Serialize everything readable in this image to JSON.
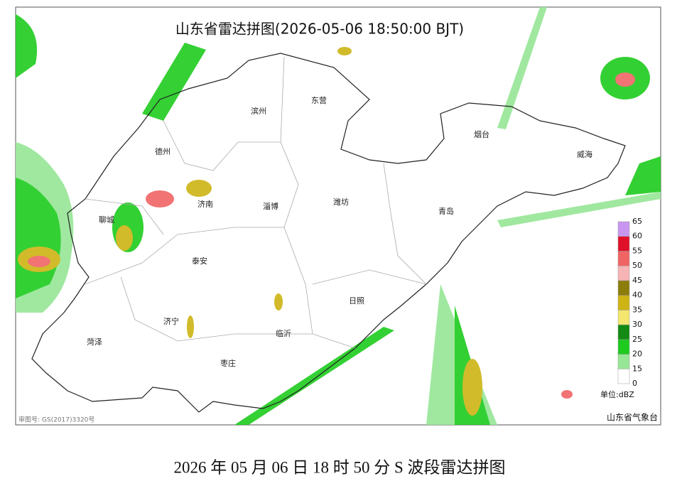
{
  "map": {
    "title": "山东省雷达拼图(2026-05-06 18:50:00 BJT)",
    "cities": [
      "滨州",
      "东营",
      "德州",
      "烟台",
      "威海",
      "淄博",
      "潍坊",
      "济南",
      "聊城",
      "青岛",
      "泰安",
      "日照",
      "济宁",
      "菏泽",
      "临沂",
      "枣庄"
    ],
    "legend": {
      "unit": "单位:dBZ",
      "ticks": [
        0,
        15,
        20,
        25,
        30,
        35,
        40,
        45,
        50,
        55,
        60,
        65
      ],
      "colors": [
        "#ffffff",
        "#96e696",
        "#1ecb1e",
        "#138a13",
        "#f4e66e",
        "#cdb414",
        "#8c7d0a",
        "#f7b4b4",
        "#f06464",
        "#e0102a",
        "#c896f0"
      ]
    },
    "credit": "山东省气象台",
    "approval": "审图号: GS(2017)3320号"
  },
  "caption": "2026 年 05 月 06 日 18 时 50 分 S 波段雷达拼图"
}
